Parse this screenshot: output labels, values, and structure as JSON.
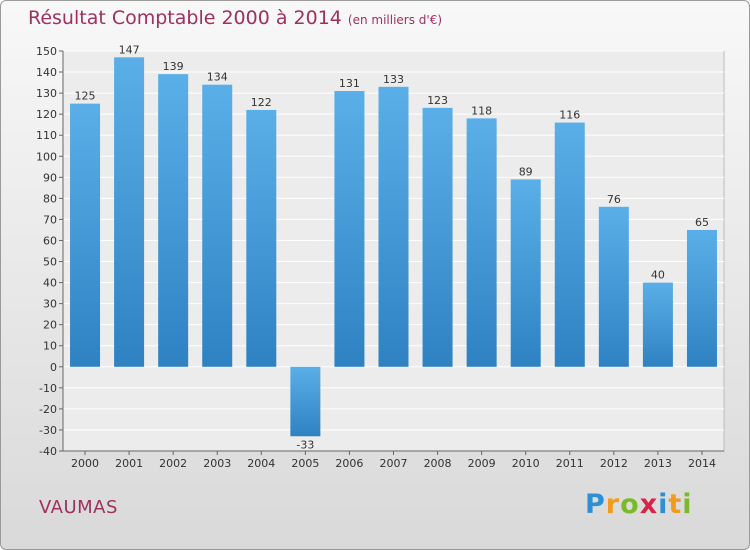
{
  "title": "Résultat Comptable 2000 à 2014",
  "subtitle": "(en milliers d'€)",
  "commune": "VAUMAS",
  "logo": {
    "letters": [
      {
        "ch": "P",
        "color": "#2e8fd6"
      },
      {
        "ch": "r",
        "color": "#f29b1d"
      },
      {
        "ch": "o",
        "color": "#7ab929"
      },
      {
        "ch": "x",
        "color": "#d9234a"
      },
      {
        "ch": "i",
        "color": "#2e8fd6"
      },
      {
        "ch": "t",
        "color": "#f29b1d"
      },
      {
        "ch": "i",
        "color": "#7ab929"
      }
    ]
  },
  "colors": {
    "bar_top": "#5aafe8",
    "bar_bottom": "#2f82c2",
    "title": "#a0305e"
  },
  "chart_data": {
    "type": "bar",
    "categories": [
      "2000",
      "2001",
      "2002",
      "2003",
      "2004",
      "2005",
      "2006",
      "2007",
      "2008",
      "2009",
      "2010",
      "2011",
      "2012",
      "2013",
      "2014"
    ],
    "values": [
      125,
      147,
      139,
      134,
      122,
      -33,
      131,
      133,
      123,
      118,
      89,
      116,
      76,
      40,
      65
    ],
    "ylim": [
      -40,
      150
    ],
    "ytick_step": 10,
    "grid": true
  }
}
